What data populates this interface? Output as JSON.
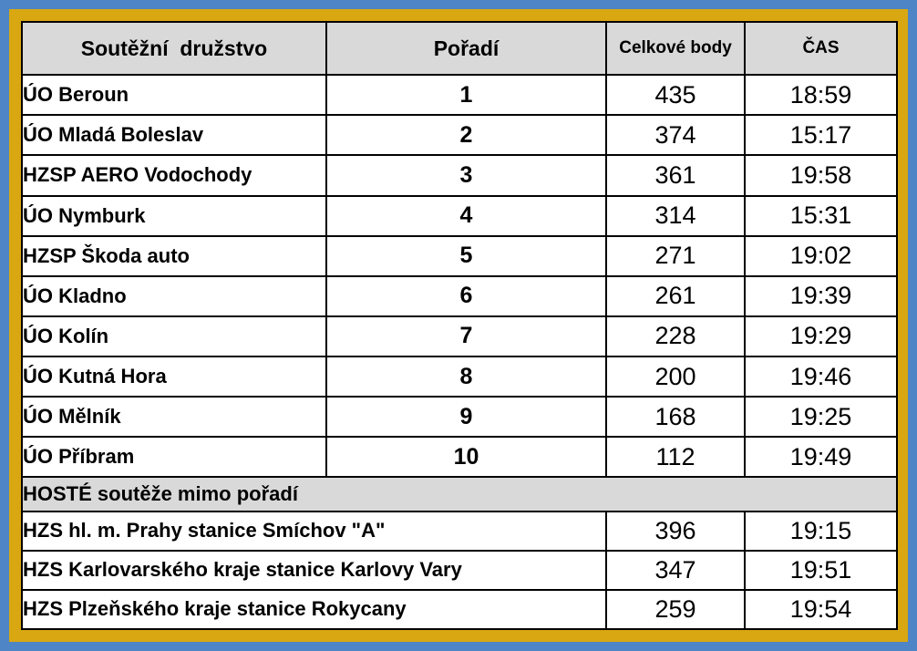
{
  "colors": {
    "frame_outer_blue": "#4d85c6",
    "frame_gold": "#d8a712",
    "header_bg": "#d9d9d9",
    "row_bg": "#ffffff",
    "border": "#000000",
    "text": "#000000"
  },
  "table": {
    "headers": {
      "team": "Soutěžní  družstvo",
      "rank": "Pořadí",
      "points": "Celkové body",
      "time": "ČAS"
    },
    "rows": [
      {
        "team": "ÚO Beroun",
        "rank": "1",
        "points": "435",
        "time": "18:59"
      },
      {
        "team": "ÚO Mladá Boleslav",
        "rank": "2",
        "points": "374",
        "time": "15:17"
      },
      {
        "team": "HZSP AERO Vodochody",
        "rank": "3",
        "points": "361",
        "time": "19:58"
      },
      {
        "team": "ÚO Nymburk",
        "rank": "4",
        "points": "314",
        "time": "15:31"
      },
      {
        "team": "HZSP Škoda auto",
        "rank": "5",
        "points": "271",
        "time": "19:02"
      },
      {
        "team": "ÚO Kladno",
        "rank": "6",
        "points": "261",
        "time": "19:39"
      },
      {
        "team": "ÚO Kolín",
        "rank": "7",
        "points": "228",
        "time": "19:29"
      },
      {
        "team": "ÚO Kutná Hora",
        "rank": "8",
        "points": "200",
        "time": "19:46"
      },
      {
        "team": "ÚO Mělník",
        "rank": "9",
        "points": "168",
        "time": "19:25"
      },
      {
        "team": "ÚO Příbram",
        "rank": "10",
        "points": "112",
        "time": "19:49"
      }
    ],
    "guest_section_title": "HOSTÉ soutěže mimo pořadí",
    "guest_rows": [
      {
        "team": "HZS hl. m. Prahy stanice Smíchov \"A\"",
        "points": "396",
        "time": "19:15"
      },
      {
        "team": "HZS Karlovarského kraje stanice Karlovy Vary",
        "points": "347",
        "time": "19:51"
      },
      {
        "team": "HZS Plzeňského kraje stanice Rokycany",
        "points": "259",
        "time": "19:54"
      }
    ]
  }
}
